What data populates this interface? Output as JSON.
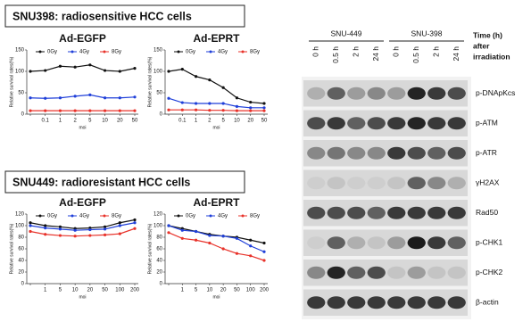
{
  "headings": [
    "SNU398: radiosensitive HCC cells",
    "SNU449: radioresistant HCC cells"
  ],
  "chart_data": [
    {
      "type": "line",
      "title": "Ad-EGFP",
      "xlabel": "moi",
      "ylabel": "Relative survival rates(%)",
      "categories": [
        null,
        "0.1",
        "1",
        "2",
        "5",
        "10",
        "20",
        "50"
      ],
      "ylim": [
        0,
        150
      ],
      "yticks": [
        0,
        50,
        100,
        150
      ],
      "legend": "top",
      "series": [
        {
          "name": "0Gy",
          "color": "#111111",
          "values": [
            100,
            102,
            112,
            110,
            115,
            102,
            100,
            107
          ]
        },
        {
          "name": "4Gy",
          "color": "#1f3fd9",
          "values": [
            38,
            37,
            38,
            42,
            45,
            38,
            38,
            40
          ]
        },
        {
          "name": "8Gy",
          "color": "#e8322a",
          "values": [
            8,
            8,
            8,
            8,
            8,
            8,
            8,
            8
          ]
        }
      ]
    },
    {
      "type": "line",
      "title": "Ad-EPRT",
      "xlabel": "moi",
      "ylabel": "Relative survival rates(%)",
      "categories": [
        null,
        "0.1",
        "1",
        "2",
        "5",
        "10",
        "20",
        "50"
      ],
      "ylim": [
        0,
        150
      ],
      "yticks": [
        0,
        50,
        100,
        150
      ],
      "legend": "top",
      "series": [
        {
          "name": "0Gy",
          "color": "#111111",
          "values": [
            100,
            105,
            88,
            80,
            62,
            38,
            28,
            25
          ]
        },
        {
          "name": "4Gy",
          "color": "#1f3fd9",
          "values": [
            37,
            27,
            25,
            25,
            25,
            18,
            15,
            15
          ]
        },
        {
          "name": "8Gy",
          "color": "#e8322a",
          "values": [
            10,
            10,
            10,
            9,
            9,
            8,
            8,
            8
          ]
        }
      ]
    },
    {
      "type": "line",
      "title": "Ad-EGFP",
      "xlabel": "moi",
      "ylabel": "Relative survival rates(%)",
      "categories": [
        null,
        "1",
        "5",
        "10",
        "20",
        "50",
        "100",
        "200"
      ],
      "ylim": [
        0,
        120
      ],
      "yticks": [
        0,
        20,
        40,
        60,
        80,
        100,
        120
      ],
      "legend": "top",
      "series": [
        {
          "name": "0Gy",
          "color": "#111111",
          "values": [
            105,
            100,
            98,
            95,
            96,
            98,
            105,
            110
          ]
        },
        {
          "name": "4Gy",
          "color": "#1f3fd9",
          "values": [
            100,
            96,
            94,
            92,
            93,
            94,
            100,
            105
          ]
        },
        {
          "name": "8Gy",
          "color": "#e8322a",
          "values": [
            90,
            85,
            83,
            82,
            83,
            84,
            86,
            95
          ]
        }
      ]
    },
    {
      "type": "line",
      "title": "Ad-EPRT",
      "xlabel": "moi",
      "ylabel": "Relative survival rates(%)",
      "categories": [
        null,
        "1",
        "5",
        "10",
        "20",
        "50",
        "100",
        "200"
      ],
      "ylim": [
        0,
        120
      ],
      "yticks": [
        0,
        20,
        40,
        60,
        80,
        100,
        120
      ],
      "legend": "top",
      "series": [
        {
          "name": "0Gy",
          "color": "#111111",
          "values": [
            100,
            95,
            90,
            85,
            82,
            80,
            75,
            70
          ]
        },
        {
          "name": "4Gy",
          "color": "#1f3fd9",
          "values": [
            100,
            92,
            90,
            83,
            82,
            78,
            65,
            55
          ]
        },
        {
          "name": "8Gy",
          "color": "#e8322a",
          "values": [
            88,
            78,
            75,
            70,
            60,
            52,
            48,
            40
          ]
        }
      ]
    }
  ],
  "blot": {
    "groups": [
      "SNU-449",
      "SNU-398"
    ],
    "lanes": [
      "0 h",
      "0.5 h",
      "2 h",
      "24 h",
      "0 h",
      "0.5 h",
      "2 h",
      "24 h"
    ],
    "time_label": [
      "Time (h)",
      "after",
      "irradiation"
    ],
    "rows": [
      "p-DNApKcs",
      "p-ATM",
      "p-ATR",
      "γH2AX",
      "Rad50",
      "p-CHK1",
      "p-CHK2",
      "β-actin"
    ]
  }
}
